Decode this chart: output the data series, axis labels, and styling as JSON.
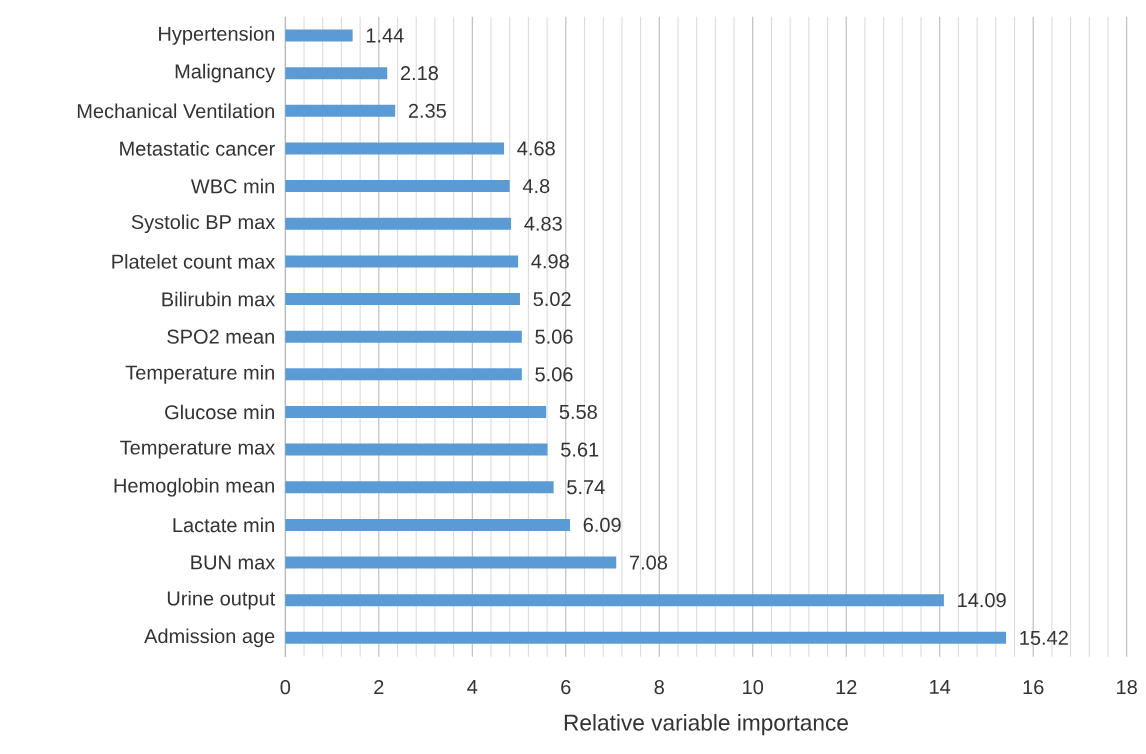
{
  "chart_data": {
    "type": "bar",
    "orientation": "horizontal",
    "xlabel": "Relative variable importance",
    "categories": [
      "Hypertension",
      "Malignancy",
      "Mechanical Ventilation",
      "Metastatic cancer",
      "WBC min",
      "Systolic BP max",
      "Platelet count max",
      "Bilirubin max",
      "SPO2 mean",
      "Temperature min",
      "Glucose min",
      "Temperature max",
      "Hemoglobin mean",
      "Lactate min",
      "BUN max",
      "Urine output",
      "Admission age"
    ],
    "values": [
      1.44,
      2.18,
      2.35,
      4.68,
      4.8,
      4.83,
      4.98,
      5.02,
      5.06,
      5.06,
      5.58,
      5.61,
      5.74,
      6.09,
      7.08,
      14.09,
      15.42
    ],
    "color": "#5b9bd5",
    "xlim": [
      0,
      18
    ],
    "xticks": [
      0,
      2,
      4,
      6,
      8,
      10,
      12,
      14,
      16,
      18
    ],
    "grid": "x",
    "data_labels": true
  }
}
